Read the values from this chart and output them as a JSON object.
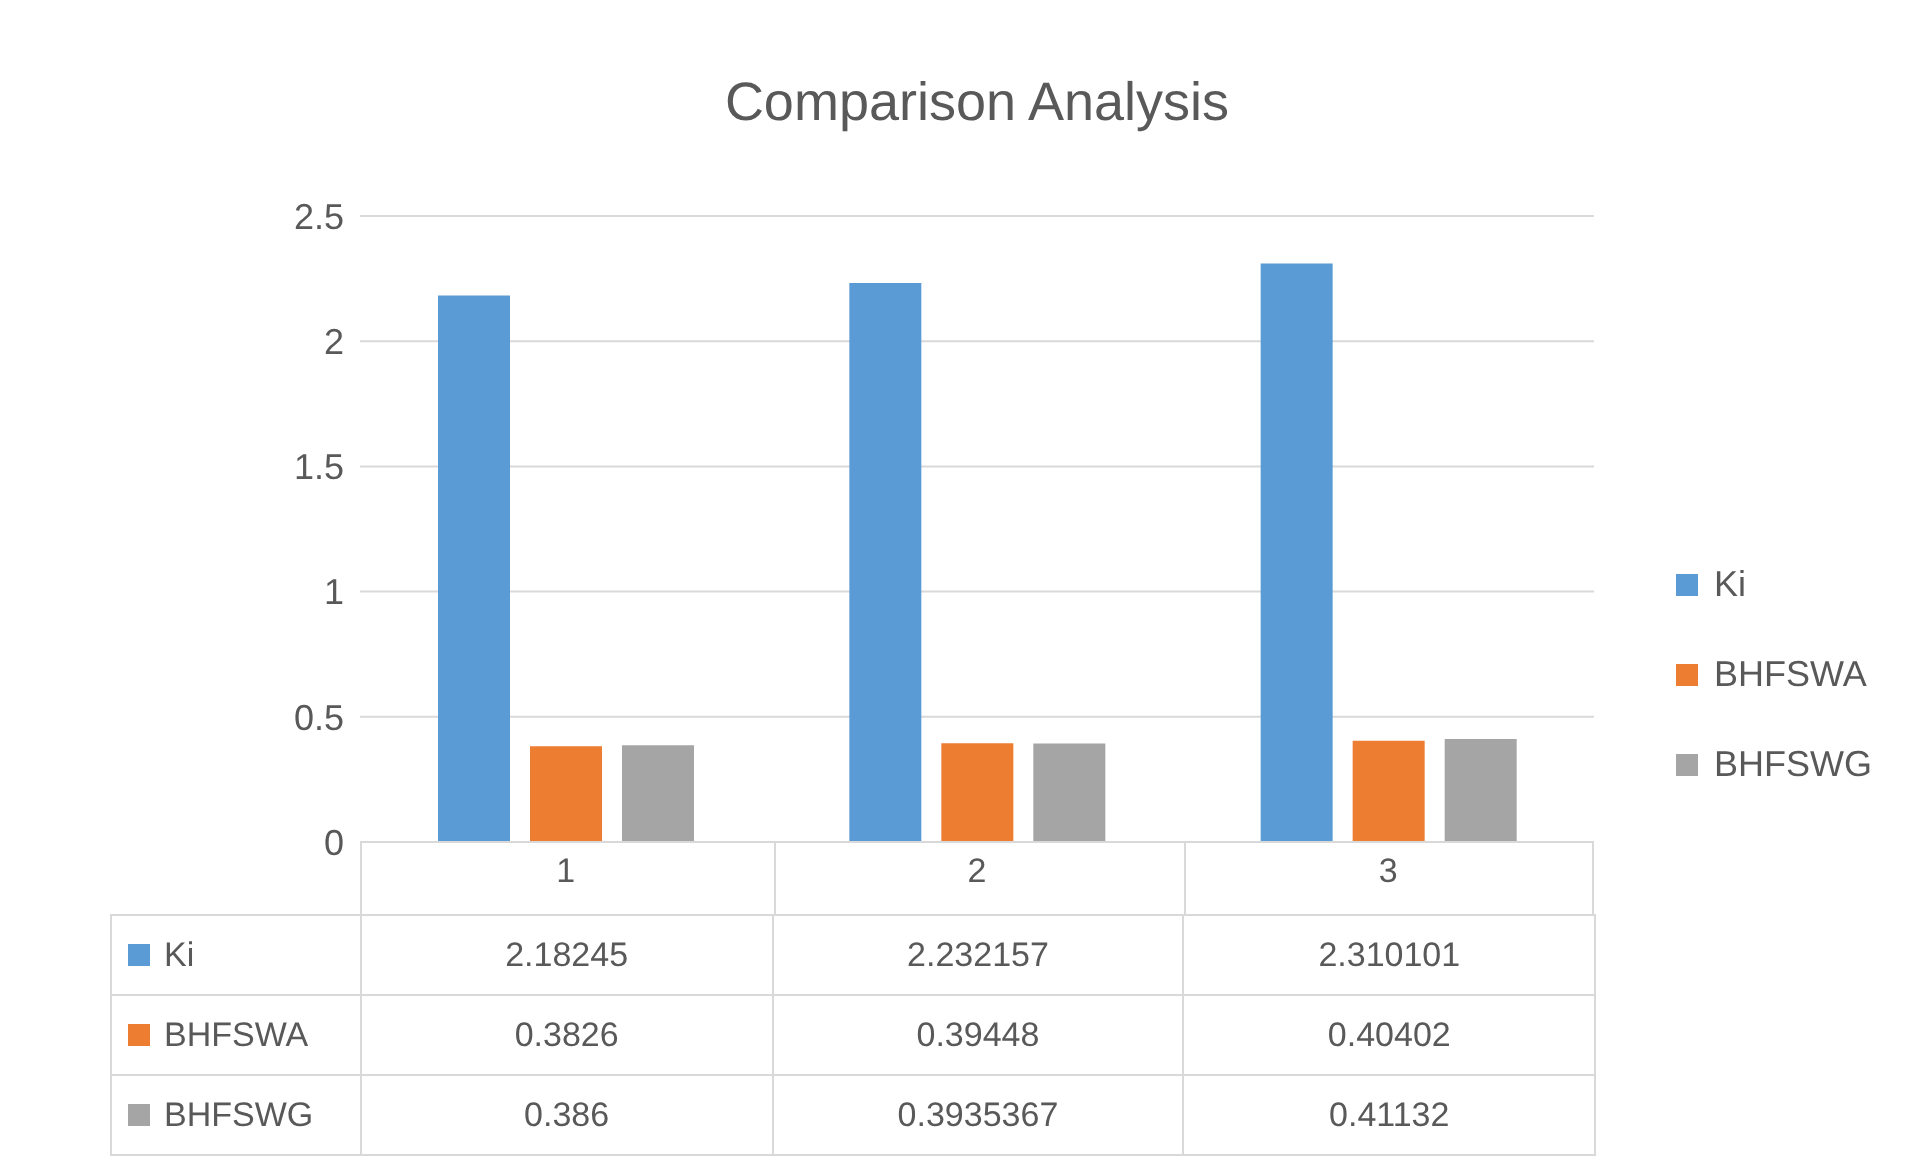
{
  "chart_data": {
    "type": "bar",
    "title": "Comparison Analysis",
    "categories": [
      "1",
      "2",
      "3"
    ],
    "series": [
      {
        "name": "Ki",
        "color": "#5b9bd5",
        "values": [
          2.18245,
          2.232157,
          2.310101
        ]
      },
      {
        "name": "BHFSWA",
        "color": "#ed7d31",
        "values": [
          0.3826,
          0.39448,
          0.40402
        ]
      },
      {
        "name": "BHFSWG",
        "color": "#a5a5a5",
        "values": [
          0.386,
          0.3935367,
          0.41132
        ]
      }
    ],
    "ylim": [
      0,
      2.5
    ],
    "yticks": [
      0,
      0.5,
      1,
      1.5,
      2,
      2.5
    ],
    "grid": "y",
    "legend": "right",
    "data_labels": true
  }
}
